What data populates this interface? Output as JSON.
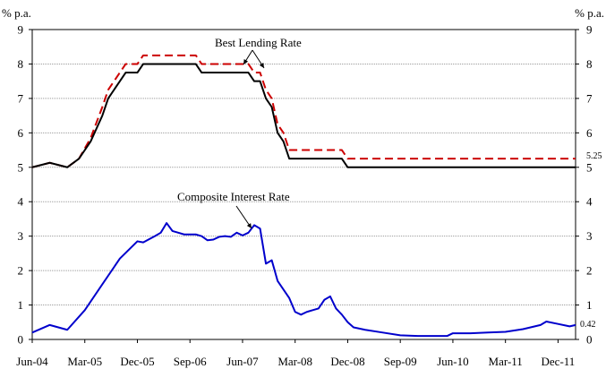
{
  "chart_data": {
    "type": "line",
    "y_unit_left": "% p.a.",
    "y_unit_right": "% p.a.",
    "ylim": [
      0,
      9
    ],
    "yticks": [
      0,
      1,
      2,
      3,
      4,
      5,
      6,
      7,
      8,
      9
    ],
    "x_tick_labels": [
      "Jun-04",
      "Mar-05",
      "Dec-05",
      "Sep-06",
      "Jun-07",
      "Mar-08",
      "Dec-08",
      "Sep-09",
      "Jun-10",
      "Mar-11",
      "Dec-11"
    ],
    "grid": true,
    "colors": {
      "blr_black": "#000000",
      "blr_red": "#cc0000",
      "composite": "#0000cc"
    },
    "annotations": {
      "best_lending_rate": "Best Lending Rate",
      "composite_interest_rate": "Composite Interest Rate",
      "blr_red_end_label": "5.25",
      "composite_end_label": "0.42"
    },
    "series": [
      {
        "style": "solid-black",
        "points": [
          [
            "Jun-04",
            5.0
          ],
          [
            "Sep-04",
            5.13
          ],
          [
            "Dec-04",
            5.0
          ],
          [
            "Feb-05",
            5.25
          ],
          [
            "Apr-05",
            5.75
          ],
          [
            "Jun-05",
            6.5
          ],
          [
            "Jul-05",
            7.0
          ],
          [
            "Sep-05",
            7.5
          ],
          [
            "Oct-05",
            7.75
          ],
          [
            "Dec-05",
            7.75
          ],
          [
            "Jan-06",
            8.0
          ],
          [
            "Feb-06",
            8.0
          ],
          [
            "Apr-06",
            8.0
          ],
          [
            "Aug-06",
            8.0
          ],
          [
            "Oct-06",
            8.0
          ],
          [
            "Nov-06",
            7.75
          ],
          [
            "Jan-07",
            7.75
          ],
          [
            "Jun-07",
            7.75
          ],
          [
            "Jul-07",
            7.75
          ],
          [
            "Aug-07",
            7.5
          ],
          [
            "Sep-07",
            7.5
          ],
          [
            "Oct-07",
            7.0
          ],
          [
            "Nov-07",
            6.75
          ],
          [
            "Dec-07",
            6.0
          ],
          [
            "Jan-08",
            5.75
          ],
          [
            "Feb-08",
            5.25
          ],
          [
            "Mar-08",
            5.25
          ],
          [
            "Nov-08",
            5.25
          ],
          [
            "Dec-08",
            5.0
          ],
          [
            "Mar-12",
            5.0
          ]
        ]
      },
      {
        "style": "dashed-red",
        "points": [
          [
            "Jun-04",
            5.0
          ],
          [
            "Sep-04",
            5.13
          ],
          [
            "Dec-04",
            5.0
          ],
          [
            "Feb-05",
            5.25
          ],
          [
            "Apr-05",
            5.85
          ],
          [
            "Jun-05",
            6.75
          ],
          [
            "Jul-05",
            7.25
          ],
          [
            "Sep-05",
            7.75
          ],
          [
            "Oct-05",
            8.0
          ],
          [
            "Dec-05",
            8.0
          ],
          [
            "Jan-06",
            8.25
          ],
          [
            "Feb-06",
            8.25
          ],
          [
            "Apr-06",
            8.25
          ],
          [
            "Aug-06",
            8.25
          ],
          [
            "Oct-06",
            8.25
          ],
          [
            "Nov-06",
            8.0
          ],
          [
            "Jan-07",
            8.0
          ],
          [
            "Jun-07",
            8.0
          ],
          [
            "Jul-07",
            8.0
          ],
          [
            "Aug-07",
            7.75
          ],
          [
            "Sep-07",
            7.75
          ],
          [
            "Oct-07",
            7.25
          ],
          [
            "Nov-07",
            7.0
          ],
          [
            "Dec-07",
            6.25
          ],
          [
            "Jan-08",
            6.0
          ],
          [
            "Feb-08",
            5.5
          ],
          [
            "Mar-08",
            5.5
          ],
          [
            "Nov-08",
            5.5
          ],
          [
            "Dec-08",
            5.25
          ],
          [
            "Mar-12",
            5.25
          ]
        ]
      },
      {
        "style": "solid-blue",
        "points": [
          [
            "Jun-04",
            0.2
          ],
          [
            "Sep-04",
            0.42
          ],
          [
            "Dec-04",
            0.28
          ],
          [
            "Mar-05",
            0.85
          ],
          [
            "Jun-05",
            1.6
          ],
          [
            "Sep-05",
            2.35
          ],
          [
            "Dec-05",
            2.85
          ],
          [
            "Jan-06",
            2.82
          ],
          [
            "Mar-06",
            3.0
          ],
          [
            "Apr-06",
            3.1
          ],
          [
            "May-06",
            3.38
          ],
          [
            "Jun-06",
            3.15
          ],
          [
            "Jul-06",
            3.1
          ],
          [
            "Aug-06",
            3.05
          ],
          [
            "Oct-06",
            3.05
          ],
          [
            "Nov-06",
            3.0
          ],
          [
            "Dec-06",
            2.88
          ],
          [
            "Jan-07",
            2.9
          ],
          [
            "Feb-07",
            2.98
          ],
          [
            "Mar-07",
            3.0
          ],
          [
            "Apr-07",
            2.98
          ],
          [
            "May-07",
            3.1
          ],
          [
            "Jun-07",
            3.02
          ],
          [
            "Jul-07",
            3.1
          ],
          [
            "Aug-07",
            3.32
          ],
          [
            "Sep-07",
            3.22
          ],
          [
            "Oct-07",
            2.2
          ],
          [
            "Nov-07",
            2.3
          ],
          [
            "Dec-07",
            1.7
          ],
          [
            "Feb-08",
            1.2
          ],
          [
            "Mar-08",
            0.8
          ],
          [
            "Apr-08",
            0.72
          ],
          [
            "May-08",
            0.8
          ],
          [
            "Jun-08",
            0.85
          ],
          [
            "Jul-08",
            0.9
          ],
          [
            "Aug-08",
            1.15
          ],
          [
            "Sep-08",
            1.25
          ],
          [
            "Oct-08",
            0.9
          ],
          [
            "Nov-08",
            0.72
          ],
          [
            "Dec-08",
            0.5
          ],
          [
            "Jan-09",
            0.35
          ],
          [
            "Mar-09",
            0.28
          ],
          [
            "Jun-09",
            0.2
          ],
          [
            "Sep-09",
            0.12
          ],
          [
            "Dec-09",
            0.1
          ],
          [
            "Mar-10",
            0.1
          ],
          [
            "May-10",
            0.1
          ],
          [
            "Jun-10",
            0.18
          ],
          [
            "Sep-10",
            0.18
          ],
          [
            "Dec-10",
            0.2
          ],
          [
            "Mar-11",
            0.22
          ],
          [
            "Jun-11",
            0.3
          ],
          [
            "Sep-11",
            0.42
          ],
          [
            "Oct-11",
            0.52
          ],
          [
            "Dec-11",
            0.45
          ],
          [
            "Feb-12",
            0.38
          ],
          [
            "Mar-12",
            0.42
          ]
        ]
      }
    ]
  }
}
